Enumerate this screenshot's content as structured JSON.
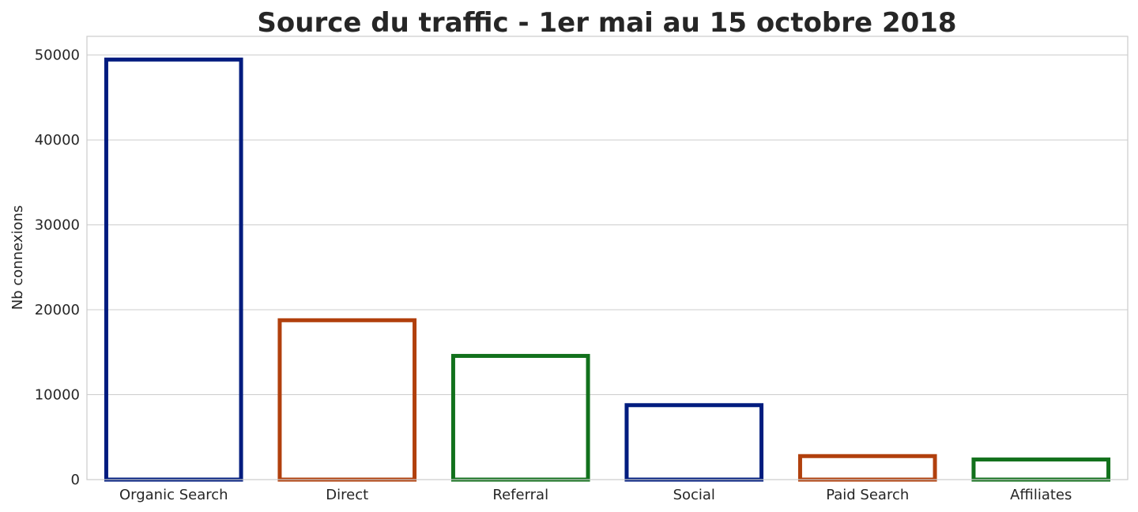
{
  "chart_data": {
    "type": "bar",
    "title": "Source du traffic - 1er mai au 15 octobre 2018",
    "xlabel": "",
    "ylabel": "Nb connexions",
    "categories": [
      "Organic Search",
      "Direct",
      "Referral",
      "Social",
      "Paid Search",
      "Affiliates"
    ],
    "values": [
      49700,
      19000,
      14800,
      9000,
      3000,
      2600
    ],
    "colors": [
      "#001c7f",
      "#b1400d",
      "#12711c",
      "#001c7f",
      "#b1400d",
      "#12711c"
    ],
    "bar_style": "outline",
    "yticks": [
      0,
      10000,
      20000,
      30000,
      40000,
      50000
    ],
    "ylim": [
      0,
      52200
    ],
    "grid": "horizontal",
    "legend": "none"
  }
}
